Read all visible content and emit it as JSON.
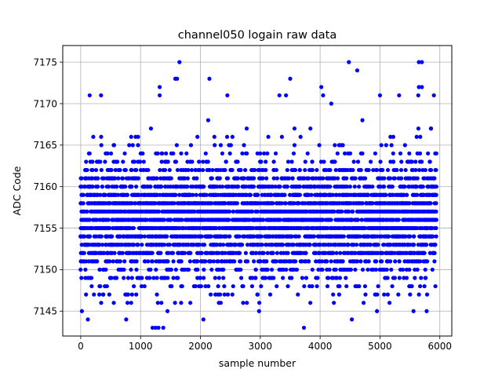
{
  "chart_data": {
    "type": "scatter",
    "title": "channel050 logain raw data",
    "xlabel": "sample number",
    "ylabel": "ADC Code",
    "xlim": [
      -300,
      6200
    ],
    "ylim": [
      7142,
      7177
    ],
    "xticks": [
      0,
      1000,
      2000,
      3000,
      4000,
      5000,
      6000
    ],
    "yticks": [
      7145,
      7150,
      7155,
      7160,
      7165,
      7170,
      7175
    ],
    "grid": true,
    "marker_color": "#0000ff",
    "series": [
      {
        "sample_count": 6000,
        "x_range": [
          0,
          5950
        ],
        "dense_y_range": [
          7148,
          7164
        ],
        "outliers": [
          {
            "x": 1650,
            "y": 7175
          },
          {
            "x": 4480,
            "y": 7175
          },
          {
            "x": 5650,
            "y": 7175
          },
          {
            "x": 5700,
            "y": 7175
          },
          {
            "x": 4620,
            "y": 7174
          },
          {
            "x": 1580,
            "y": 7173
          },
          {
            "x": 1610,
            "y": 7173
          },
          {
            "x": 2150,
            "y": 7173
          },
          {
            "x": 3500,
            "y": 7173
          },
          {
            "x": 1320,
            "y": 7172
          },
          {
            "x": 4020,
            "y": 7172
          },
          {
            "x": 5650,
            "y": 7172
          },
          {
            "x": 5700,
            "y": 7172
          },
          {
            "x": 150,
            "y": 7171
          },
          {
            "x": 340,
            "y": 7171
          },
          {
            "x": 1320,
            "y": 7171
          },
          {
            "x": 2450,
            "y": 7171
          },
          {
            "x": 3320,
            "y": 7171
          },
          {
            "x": 3430,
            "y": 7171
          },
          {
            "x": 4050,
            "y": 7171
          },
          {
            "x": 5000,
            "y": 7171
          },
          {
            "x": 5320,
            "y": 7171
          },
          {
            "x": 5640,
            "y": 7171
          },
          {
            "x": 5900,
            "y": 7171
          },
          {
            "x": 1200,
            "y": 7143
          },
          {
            "x": 1250,
            "y": 7143
          },
          {
            "x": 1300,
            "y": 7143
          },
          {
            "x": 1380,
            "y": 7143
          },
          {
            "x": 3730,
            "y": 7143
          },
          {
            "x": 120,
            "y": 7144
          },
          {
            "x": 760,
            "y": 7144
          },
          {
            "x": 2050,
            "y": 7144
          },
          {
            "x": 4530,
            "y": 7144
          },
          {
            "x": 20,
            "y": 7145
          },
          {
            "x": 1450,
            "y": 7145
          },
          {
            "x": 2980,
            "y": 7145
          },
          {
            "x": 4950,
            "y": 7145
          },
          {
            "x": 5560,
            "y": 7145
          },
          {
            "x": 5780,
            "y": 7145
          }
        ]
      }
    ]
  }
}
